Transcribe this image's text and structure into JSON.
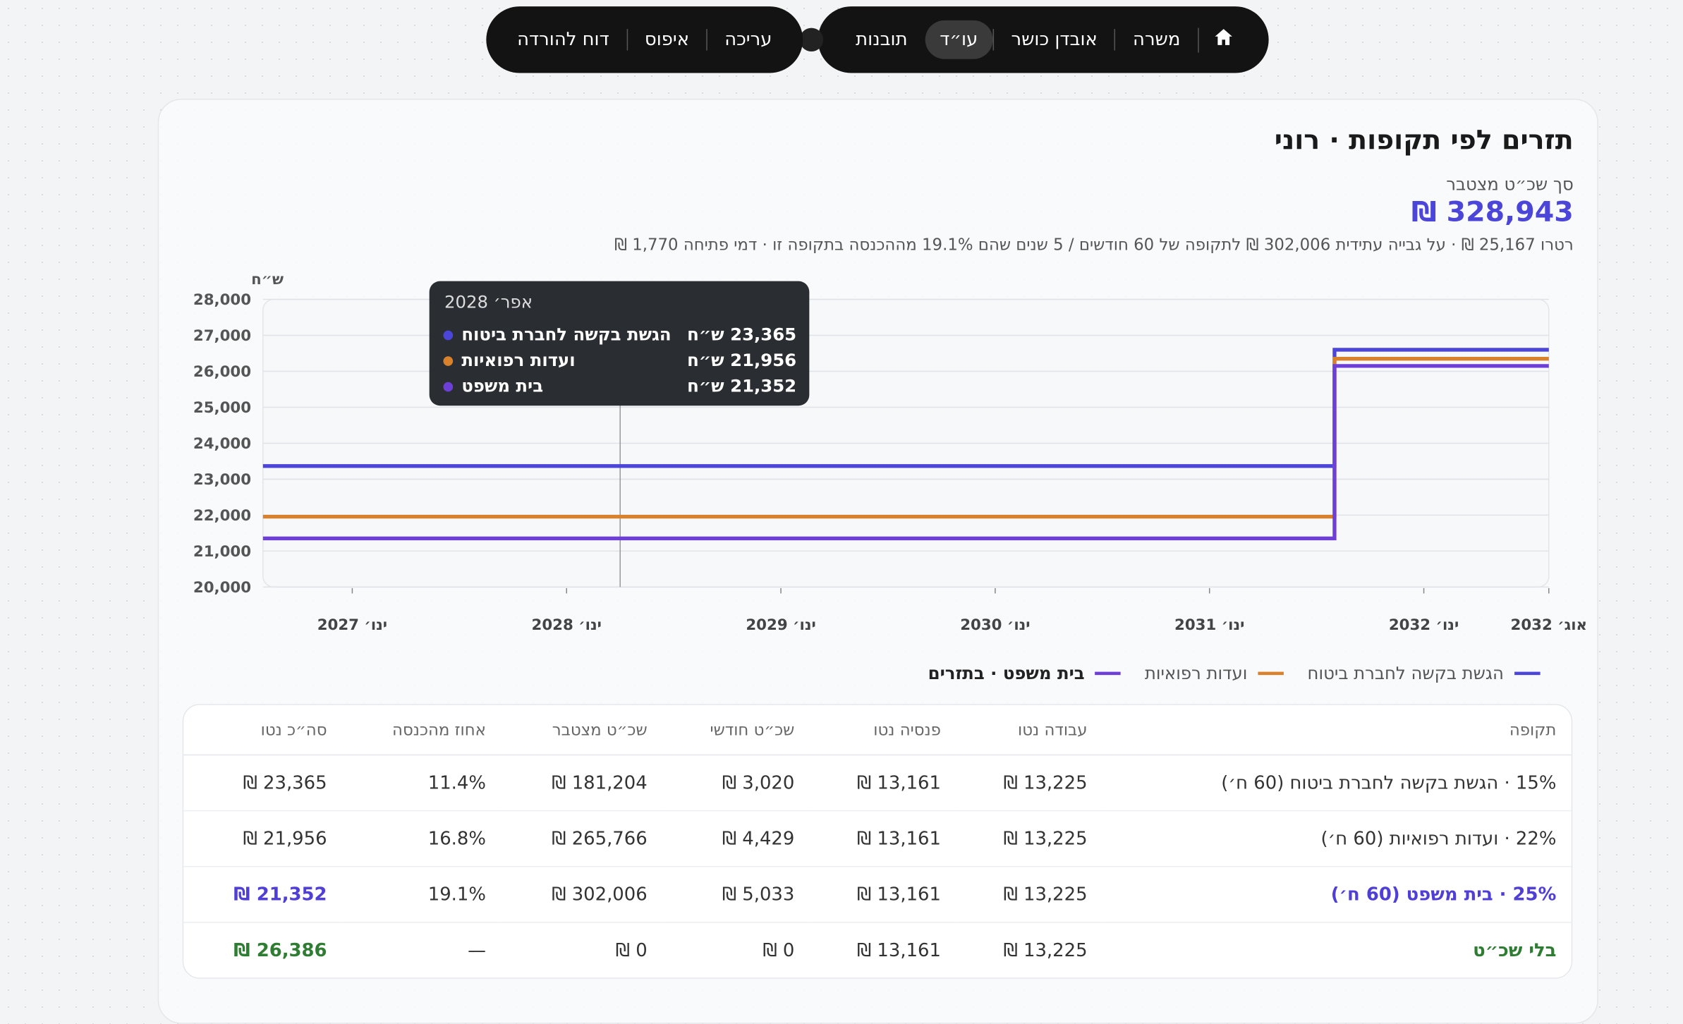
{
  "nav": {
    "actions": [
      "עריכה",
      "איפוס",
      "דוח להורדה"
    ],
    "tabs": [
      "משרה",
      "אובדן כושר",
      "עו״ד",
      "תובנות"
    ],
    "active_tab": 2
  },
  "header": {
    "title": "תזרים לפי תקופות · רוני",
    "total_label": "סך שכ״ט מצטבר",
    "total": "328,943 ₪",
    "summary": "רטרו 25,167 ₪ · על גבייה עתידית 302,006 ₪ לתקופה של 60 חודשים / 5 שנים שהם 19.1% מההכנסה בתקופה זו · דמי פתיחה 1,770 ₪"
  },
  "chart_data": {
    "type": "line",
    "step": "after",
    "y_unit": "ש״ח",
    "x": [
      "2026-08",
      "2031-08",
      "2032-08"
    ],
    "xlim": [
      "2026-08",
      "2032-08"
    ],
    "xticks": [
      {
        "value": "2027-01",
        "label": "ינו׳ 2027"
      },
      {
        "value": "2028-01",
        "label": "ינו׳ 2028"
      },
      {
        "value": "2029-01",
        "label": "ינו׳ 2029"
      },
      {
        "value": "2030-01",
        "label": "ינו׳ 2030"
      },
      {
        "value": "2031-01",
        "label": "ינו׳ 2031"
      },
      {
        "value": "2032-01",
        "label": "ינו׳ 2032"
      },
      {
        "value": "2032-08",
        "label": "אוג׳ 2032"
      }
    ],
    "ylim": [
      20000,
      28000
    ],
    "yticks": [
      {
        "value": 20000,
        "label": "20,000"
      },
      {
        "value": 21000,
        "label": "21,000"
      },
      {
        "value": 22000,
        "label": "22,000"
      },
      {
        "value": 23000,
        "label": "23,000"
      },
      {
        "value": 24000,
        "label": "24,000"
      },
      {
        "value": 25000,
        "label": "25,000"
      },
      {
        "value": 26000,
        "label": "26,000"
      },
      {
        "value": 27000,
        "label": "27,000"
      },
      {
        "value": 28000,
        "label": "28,000"
      }
    ],
    "grid": true,
    "highlighted_series": 2,
    "series": [
      {
        "name": "הגשת בקשה לחברת ביטוח",
        "color": "#4b45d9",
        "values": [
          23365,
          26600,
          26600
        ]
      },
      {
        "name": "ועדות רפואיות",
        "color": "#d9822b",
        "values": [
          21956,
          26350,
          26350
        ]
      },
      {
        "name": "בית משפט · בתזרים",
        "color": "#6d3fd8",
        "values": [
          21352,
          26150,
          26150
        ]
      }
    ],
    "tooltip": {
      "x": "2028-04",
      "title": "אפר׳ 2028",
      "items": [
        {
          "name": "הגשת בקשה לחברת ביטוח",
          "value_label": "23,365 ש״ח"
        },
        {
          "name": "ועדות רפואיות",
          "value_label": "21,956 ש״ח"
        },
        {
          "name": "בית משפט",
          "value_label": "21,352 ש״ח"
        }
      ]
    }
  },
  "table": {
    "columns": [
      "תקופה",
      "עבודה נטו",
      "פנסיה נטו",
      "שכ״ט חודשי",
      "שכ״ט מצטבר",
      "אחוז מהכנסה",
      "סה״כ נטו"
    ],
    "rows": [
      [
        "15% · הגשת בקשה לחברת ביטוח (60 ח׳)",
        "13,225 ₪",
        "13,161 ₪",
        "3,020 ₪",
        "181,204 ₪",
        "11.4%",
        "23,365 ₪"
      ],
      [
        "22% · ועדות רפואיות (60 ח׳)",
        "13,225 ₪",
        "13,161 ₪",
        "4,429 ₪",
        "265,766 ₪",
        "16.8%",
        "21,956 ₪"
      ],
      [
        "25% · בית משפט (60 ח׳)",
        "13,225 ₪",
        "13,161 ₪",
        "5,033 ₪",
        "302,006 ₪",
        "19.1%",
        "21,352 ₪"
      ],
      [
        "בלי שכ״ט",
        "13,225 ₪",
        "13,161 ₪",
        "0 ₪",
        "0 ₪",
        "—",
        "26,386 ₪"
      ]
    ]
  }
}
